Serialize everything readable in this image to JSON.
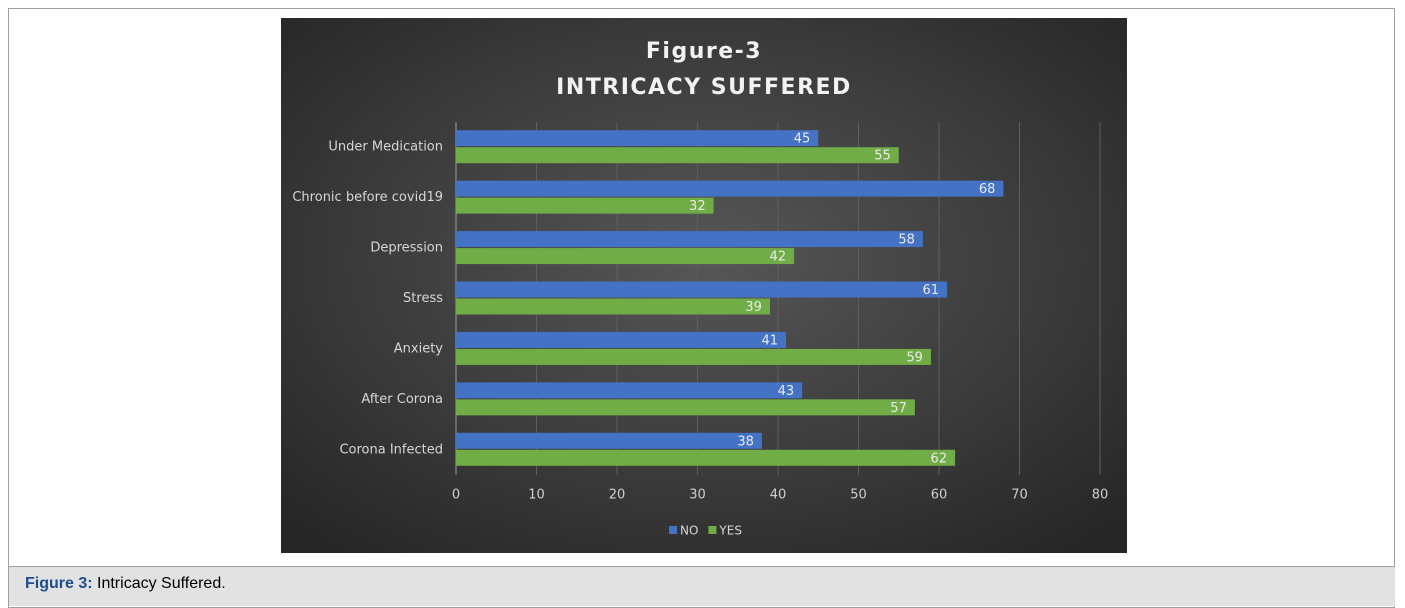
{
  "chart_data": {
    "type": "hbar",
    "title": "Figure-3",
    "subtitle": "INTRICACY SUFFERED",
    "categories": [
      "Under Medication",
      "Chronic before covid19",
      "Depression",
      "Stress",
      "Anxiety",
      "After Corona",
      "Corona Infected"
    ],
    "series": [
      {
        "name": "NO",
        "color": "#4472c4",
        "values": [
          45,
          68,
          58,
          61,
          41,
          43,
          38
        ]
      },
      {
        "name": "YES",
        "color": "#70ad47",
        "values": [
          55,
          32,
          42,
          39,
          59,
          57,
          62
        ]
      }
    ],
    "xlim": [
      0,
      80
    ],
    "xticks": [
      0,
      10,
      20,
      30,
      40,
      50,
      60,
      70,
      80
    ],
    "grid": true,
    "legend": "bottom"
  },
  "caption": {
    "label": "Figure 3:",
    "text": "Intricacy Suffered."
  }
}
